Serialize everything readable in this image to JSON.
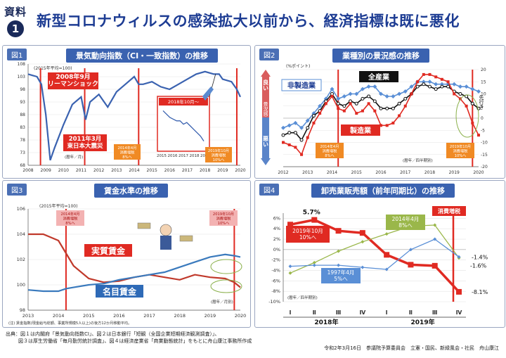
{
  "header": {
    "badge_top": "資料",
    "badge_num": "1",
    "title": "新型コロナウィルスの感染拡大以前から、経済指標は既に悪化"
  },
  "colors": {
    "accent": "#1d3c93",
    "red": "#e02a22",
    "blue": "#3a62b0",
    "teal": "#2e86c1"
  },
  "footer": {
    "line1": "出典：図１は内閣府「景気動向指数CI」、図２は日本銀行「短観（全国企業短期経済観測調査）」、",
    "line2": "図３は厚生労働省「毎月勤労統計調査」、図４は経済産業省「商業動態統計」をもとに舟山康江事務所作成",
    "right": "令和2年3月16日　参議院予算委員会　立憲・国民、新緑風会・社民　舟山康江"
  },
  "chart_data": [
    {
      "id": "fig1",
      "label": "図1",
      "title": "景気動向指数（CI・一致指数）の推移",
      "type": "line",
      "note": "(2015年平均=100)",
      "x": [
        2008.0,
        2008.5,
        2008.75,
        2009.0,
        2009.25,
        2009.5,
        2010.0,
        2010.5,
        2011.0,
        2011.25,
        2011.5,
        2012.0,
        2012.5,
        2013.0,
        2013.5,
        2014.0,
        2014.25,
        2014.5,
        2015.0,
        2015.5,
        2016.0,
        2016.5,
        2017.0,
        2017.5,
        2018.0,
        2018.5,
        2018.8,
        2019.0,
        2019.5,
        2019.8,
        2020.0
      ],
      "y": [
        104,
        103,
        100,
        88,
        70,
        75,
        84,
        92,
        95,
        86,
        93,
        96,
        91,
        97,
        100,
        103,
        100,
        100,
        101,
        99,
        98,
        100,
        102,
        104,
        105,
        104,
        104,
        102,
        101,
        98,
        95
      ],
      "xticks": [
        "2008",
        "2009",
        "2010",
        "2011",
        "2012",
        "2013",
        "2014",
        "2015",
        "2016",
        "2017",
        "2018",
        "2019",
        "2020"
      ],
      "ylim": [
        68,
        108
      ],
      "yticks": [
        "68",
        "73",
        "78",
        "83",
        "88",
        "93",
        "98",
        "103",
        "108"
      ],
      "events": [
        {
          "text": "2008年9月\nリーマンショック"
        },
        {
          "text": "2011年3月\n東日本大震災"
        },
        {
          "text": "2014年4月\n消費増税\n8%へ"
        },
        {
          "text": "2019年10月\n消費増税\n10%へ"
        }
      ],
      "inset": {
        "title": "2018年10月～",
        "xticks": [
          "2015",
          "2016",
          "2017",
          "2018",
          "2019"
        ],
        "values": [
          103,
          101,
          99,
          98,
          97,
          97,
          95,
          96,
          94,
          92,
          90,
          88,
          85
        ]
      },
      "unit_note": "(暦年／月)"
    },
    {
      "id": "fig2",
      "label": "図2",
      "title": "業種別の景況感の推移",
      "type": "line",
      "note": "(%ポイント)",
      "x": [
        2012.0,
        2012.25,
        2012.5,
        2012.75,
        2013.0,
        2013.25,
        2013.5,
        2013.75,
        2014.0,
        2014.25,
        2014.5,
        2014.75,
        2015.0,
        2015.25,
        2015.5,
        2015.75,
        2016.0,
        2016.25,
        2016.5,
        2016.75,
        2017.0,
        2017.25,
        2017.5,
        2017.75,
        2018.0,
        2018.25,
        2018.5,
        2018.75,
        2019.0,
        2019.25,
        2019.5,
        2019.75,
        2020.0
      ],
      "series": [
        {
          "name": "非製造業",
          "values": [
            -4,
            -3,
            -2,
            -4,
            -1,
            2,
            5,
            8,
            12,
            8,
            9,
            10,
            10,
            12,
            13,
            13,
            10,
            9,
            9,
            10,
            11,
            13,
            15,
            15,
            15,
            14,
            14,
            14,
            14,
            13,
            13,
            12,
            11
          ]
        },
        {
          "name": "全産業",
          "values": [
            -7,
            -6,
            -6,
            -9,
            -4,
            1,
            3,
            7,
            10,
            6,
            5,
            7,
            6,
            8,
            9,
            7,
            4,
            4,
            4,
            6,
            8,
            10,
            13,
            14,
            13,
            12,
            13,
            13,
            11,
            10,
            9,
            6,
            4
          ]
        },
        {
          "name": "製造業",
          "values": [
            -10,
            -11,
            -12,
            -15,
            -8,
            -2,
            2,
            6,
            9,
            4,
            3,
            6,
            2,
            3,
            6,
            3,
            -3,
            -3,
            -2,
            1,
            5,
            10,
            15,
            18,
            18,
            17,
            16,
            15,
            10,
            8,
            5,
            -2,
            -7
          ]
        }
      ],
      "xticks": [
        "2012",
        "2013",
        "2014",
        "2015",
        "2016",
        "2017",
        "2018",
        "2019",
        "2020"
      ],
      "ylim": [
        -20,
        20
      ],
      "yticks": [
        "-20",
        "-15",
        "-10",
        "-5",
        "0",
        "5",
        "10",
        "15",
        "20"
      ],
      "side_labels": {
        "good": "良い",
        "center": "景況感",
        "bad": "悪い"
      },
      "trend_note": "先行き",
      "events": [
        {
          "text": "2014年4月\n消費増税\n8%へ"
        },
        {
          "text": "2019年10月\n消費増税\n10%へ"
        }
      ],
      "unit_note": "(暦年／四半期別)"
    },
    {
      "id": "fig3",
      "label": "図3",
      "title": "賃金水準の推移",
      "type": "line",
      "note": "(2015年平均=100)",
      "x": [
        2013.0,
        2013.5,
        2014.0,
        2014.25,
        2014.5,
        2015.0,
        2015.5,
        2016.0,
        2016.5,
        2017.0,
        2017.5,
        2018.0,
        2018.5,
        2019.0,
        2019.5,
        2019.8,
        2020.0
      ],
      "series": [
        {
          "name": "実質賃金",
          "values": [
            104,
            104,
            103.5,
            102.5,
            101.5,
            100.5,
            100.2,
            100.3,
            100.6,
            100.8,
            100.6,
            100.4,
            100.8,
            100.6,
            100.5,
            100.2,
            99.8
          ]
        },
        {
          "name": "名目賃金",
          "values": [
            99.6,
            99.5,
            99.5,
            99.7,
            99.8,
            100.0,
            100.1,
            100.4,
            100.6,
            100.8,
            101.0,
            101.4,
            101.8,
            102.2,
            102.4,
            102.3,
            102.2
          ]
        }
      ],
      "xticks": [
        "2013",
        "2014",
        "2015",
        "2016",
        "2017",
        "2018",
        "2019",
        "2020"
      ],
      "ylim": [
        98,
        106
      ],
      "yticks": [
        "98",
        "100",
        "102",
        "104",
        "106"
      ],
      "events": [
        {
          "text": "2014年4月\n消費増税\n8%へ"
        },
        {
          "text": "2019年10月\n消費増税\n10%へ"
        }
      ],
      "unit_note": "(暦年／月別)",
      "footnote": "(注) 賃金指数(現金給与総額、事業所規模5人以上)の後方12か月移動平均。"
    },
    {
      "id": "fig4",
      "label": "図4",
      "title": "卸売業販売額（前年同期比）の推移",
      "type": "line",
      "categories": [
        "Ⅰ",
        "Ⅱ",
        "Ⅲ",
        "Ⅳ",
        "Ⅰ",
        "Ⅱ",
        "Ⅲ",
        "Ⅳ"
      ],
      "year_groups": [
        "2018年",
        "2019年"
      ],
      "series": [
        {
          "name": "2019年",
          "values": [
            4.8,
            5.7,
            3.6,
            3.2,
            -1.0,
            -2.9,
            -3.1,
            -8.1
          ]
        },
        {
          "name": "2014年",
          "values": [
            -4.5,
            -2.5,
            -0.3,
            1.5,
            3.0,
            4.5,
            4.7,
            -1.6
          ]
        },
        {
          "name": "1997年",
          "values": [
            -3.2,
            -3.0,
            -3.0,
            -3.4,
            -3.8,
            0.0,
            2.0,
            -1.4
          ]
        }
      ],
      "ylim": [
        -10,
        7
      ],
      "yticks": [
        "6%",
        "4%",
        "2%",
        "0%",
        "-2%",
        "-4%",
        "-6%",
        "-8%",
        "-10%"
      ],
      "data_labels": {
        "top": "5.7%",
        "end_a": "-1.4%",
        "end_b": "-1.6%",
        "end_c": "-8.1%"
      },
      "events": [
        {
          "text": "2019年10月\n10%へ"
        },
        {
          "text": "2014年4月\n8%へ"
        },
        {
          "text": "1997年4月\n5%へ"
        },
        {
          "text": "消費増税"
        }
      ],
      "unit_note": "(暦年／四半期別)"
    }
  ]
}
